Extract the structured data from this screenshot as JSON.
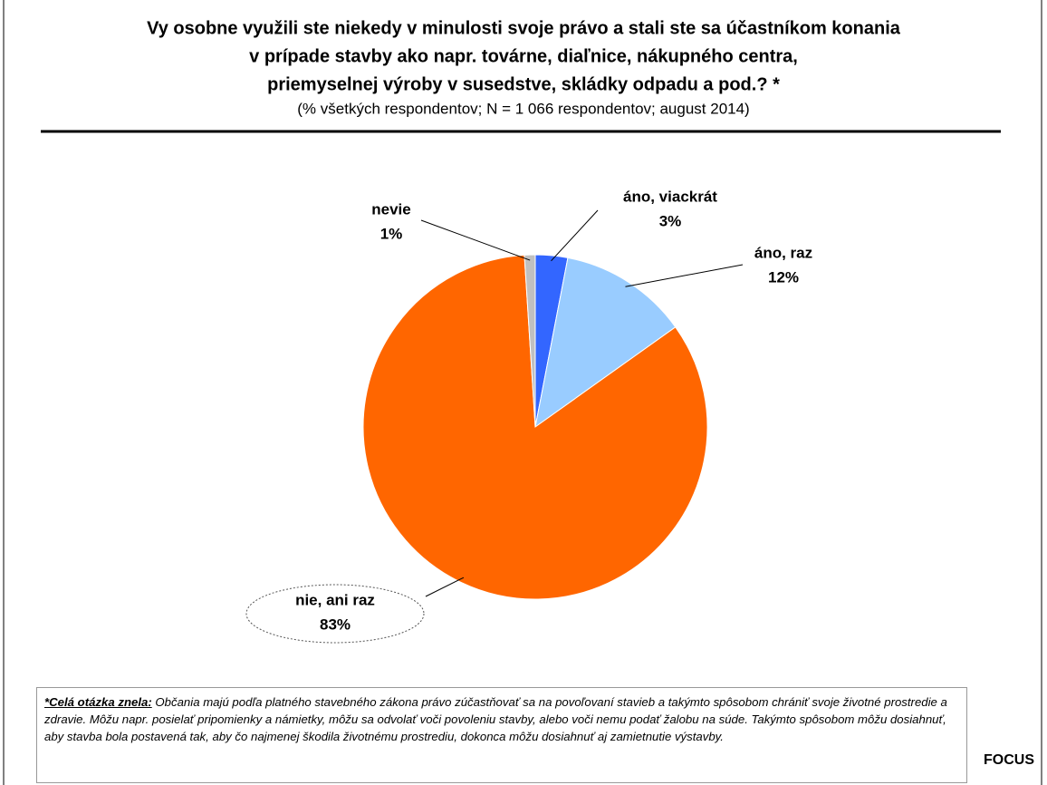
{
  "chart_data": {
    "type": "pie",
    "title": [
      "Vy osobne využili ste niekedy v minulosti svoje právo a stali ste sa účastníkom konania",
      "v prípade stavby ako napr. továrne, diaľnice, nákupného centra,",
      "priemyselnej výroby v susedstve, skládky odpadu a pod.? *"
    ],
    "subtitle": "(% všetkých respondentov; N = 1 066 respondentov; august 2014)",
    "categories": [
      "áno, viackrát",
      "áno, raz",
      "nie, ani raz",
      "nevie"
    ],
    "values": [
      3,
      12,
      83,
      1
    ],
    "value_labels": [
      "3%",
      "12%",
      "83%",
      "1%"
    ],
    "colors": [
      "#3366ff",
      "#99ccff",
      "#ff6600",
      "#c0c0c0"
    ],
    "footnote": {
      "lead": "*Celá otázka znela:",
      "text": "Občania majú podľa platného stavebného zákona právo zúčastňovať sa na povoľovaní stavieb a takýmto spôsobom chrániť svoje životné prostredie a zdravie. Môžu napr. posielať pripomienky a námietky, môžu sa odvolať voči povoleniu stavby, alebo voči nemu podať žalobu na súde. Takýmto spôsobom môžu dosiahnuť, aby stavba bola postavená tak, aby čo najmenej škodila životnému prostrediu, dokonca môžu dosiahnuť aj zamietnutie výstavby."
    },
    "source": "FOCUS"
  }
}
